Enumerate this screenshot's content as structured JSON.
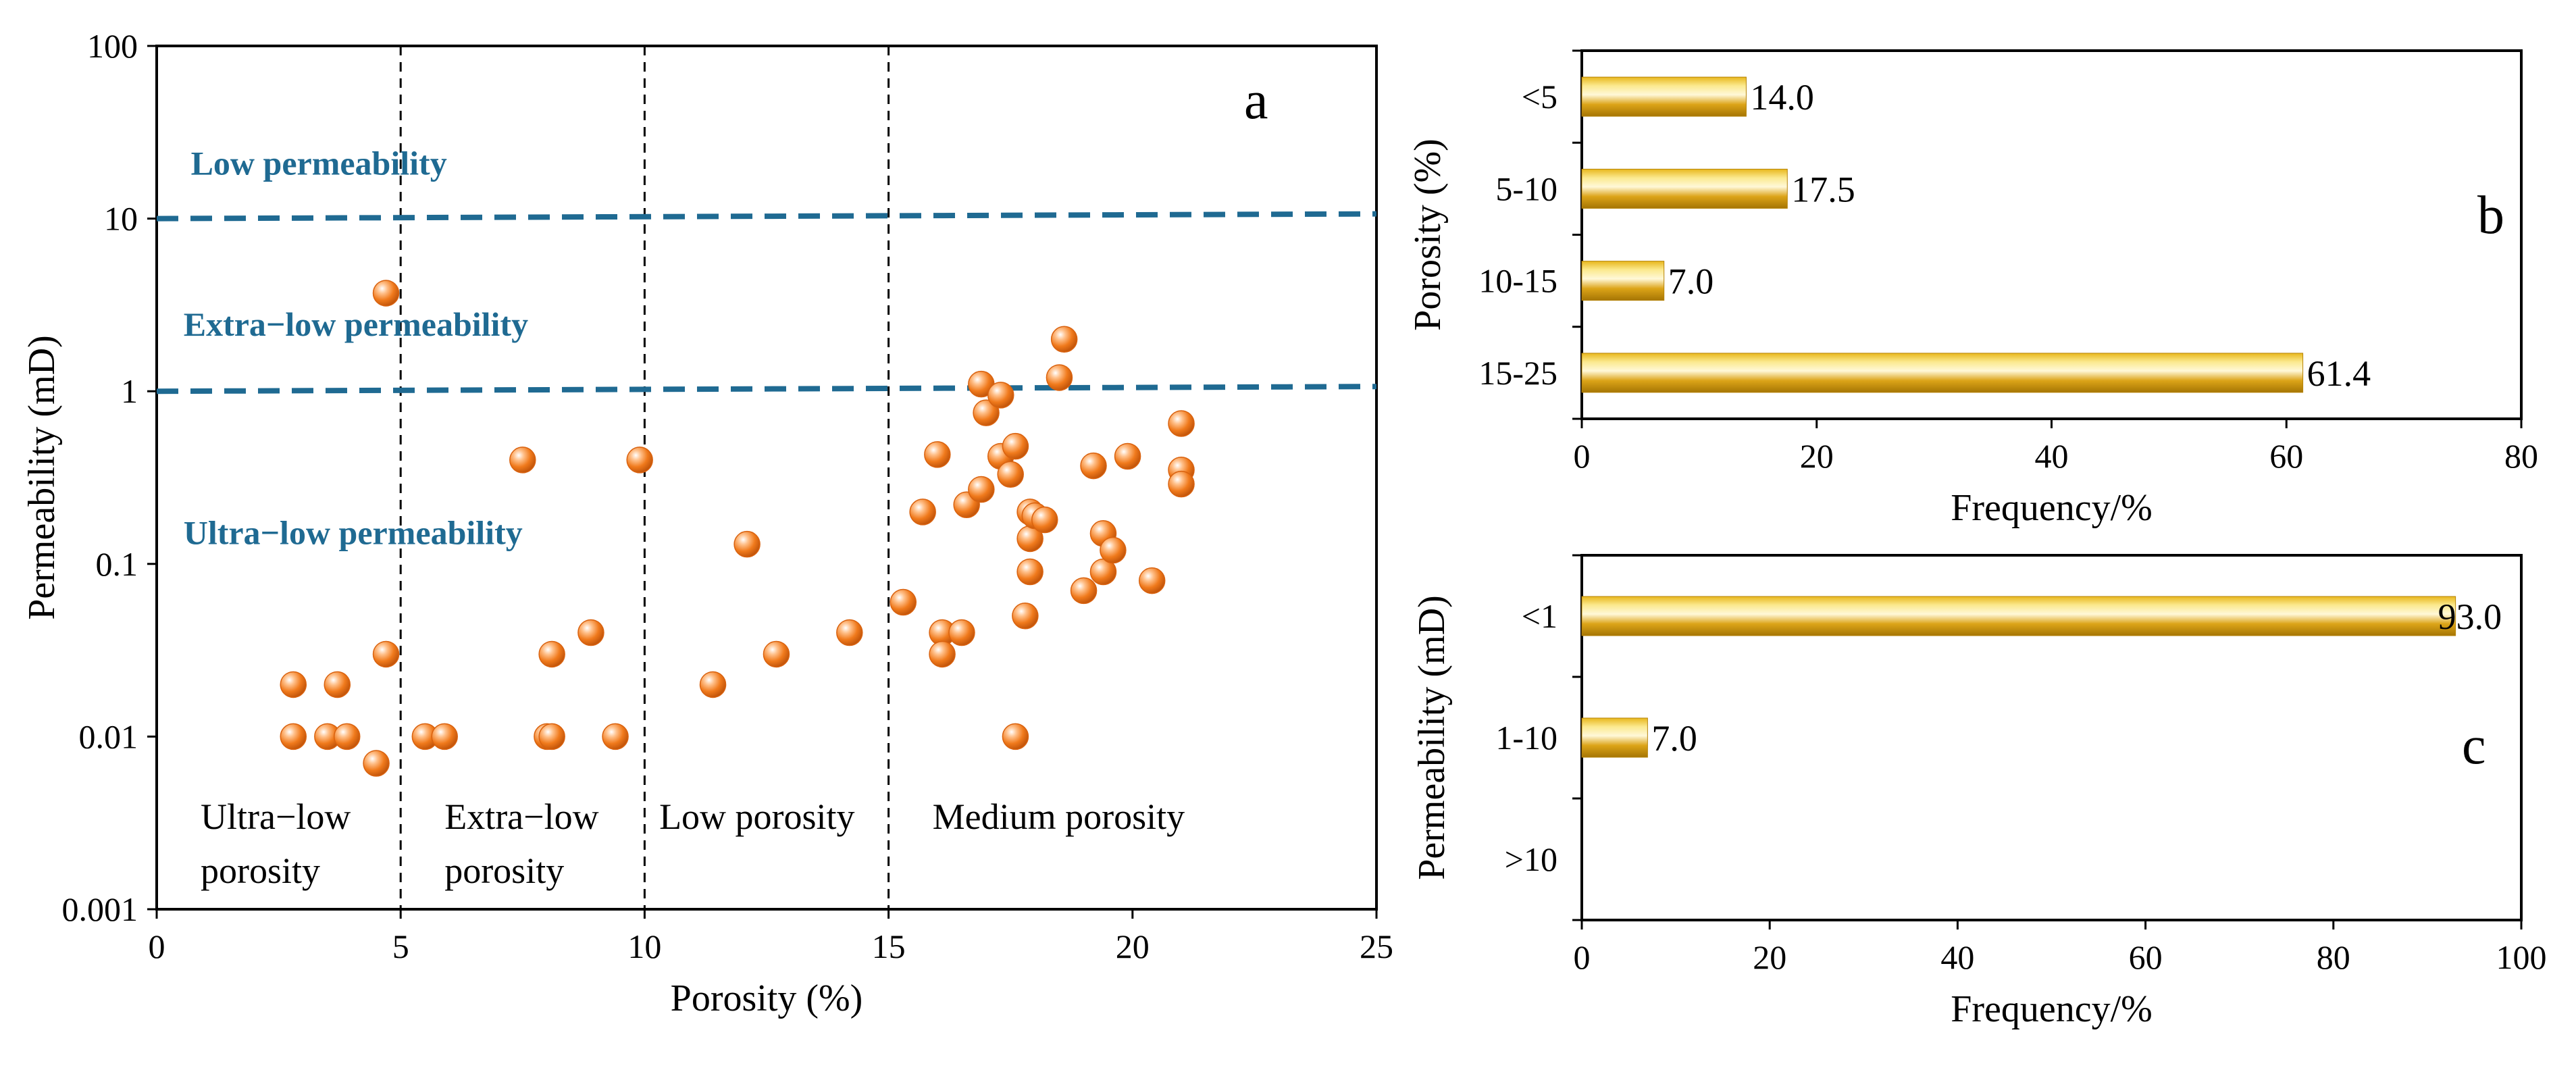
{
  "chart_data": [
    {
      "id": "a",
      "type": "scatter",
      "panel_label": "a",
      "xlabel": "Porosity (%)",
      "ylabel": "Permeability (mD)",
      "xlim": [
        0,
        25
      ],
      "ylim": [
        0.001,
        100
      ],
      "yscale": "log",
      "x_ticks": [
        0,
        5,
        10,
        15,
        20,
        25
      ],
      "x_tick_labels": [
        "0",
        "5",
        "10",
        "15",
        "20",
        "25"
      ],
      "y_ticks": [
        0.001,
        0.01,
        0.1,
        1,
        10,
        100
      ],
      "y_tick_labels": [
        "0.001",
        "0.01",
        "0.1",
        "1",
        "10",
        "100"
      ],
      "porosity_boundaries": [
        5,
        10,
        15
      ],
      "permeability_boundaries": [
        10,
        1
      ],
      "permeability_labels": [
        {
          "text": "Low permeability",
          "x": 0.7,
          "y": 18
        },
        {
          "text": "Extra−low permeability",
          "x": 0.55,
          "y": 2.1
        },
        {
          "text": "Ultra−low permeability",
          "x": 0.55,
          "y": 0.13
        }
      ],
      "porosity_labels": [
        {
          "lines": [
            "Ultra−low",
            "porosity"
          ],
          "x": 0.9,
          "y": 0.0035
        },
        {
          "lines": [
            "Extra−low",
            "porosity"
          ],
          "x": 5.9,
          "y": 0.0035
        },
        {
          "lines": [
            "Low porosity"
          ],
          "x": 10.3,
          "y": 0.0035
        },
        {
          "lines": [
            "Medium porosity"
          ],
          "x": 15.9,
          "y": 0.0035
        }
      ],
      "marker_color": "#f07a1c",
      "points": [
        {
          "x": 2.8,
          "y": 0.02
        },
        {
          "x": 2.8,
          "y": 0.01
        },
        {
          "x": 3.5,
          "y": 0.01
        },
        {
          "x": 3.7,
          "y": 0.02
        },
        {
          "x": 3.9,
          "y": 0.01
        },
        {
          "x": 4.5,
          "y": 0.007
        },
        {
          "x": 4.7,
          "y": 0.03
        },
        {
          "x": 4.7,
          "y": 3.7
        },
        {
          "x": 5.5,
          "y": 0.01
        },
        {
          "x": 5.9,
          "y": 0.01
        },
        {
          "x": 7.5,
          "y": 0.4
        },
        {
          "x": 8.0,
          "y": 0.01
        },
        {
          "x": 8.1,
          "y": 0.03
        },
        {
          "x": 8.1,
          "y": 0.01
        },
        {
          "x": 8.9,
          "y": 0.04
        },
        {
          "x": 9.4,
          "y": 0.01
        },
        {
          "x": 9.9,
          "y": 0.4
        },
        {
          "x": 11.4,
          "y": 0.02
        },
        {
          "x": 12.1,
          "y": 0.13
        },
        {
          "x": 12.7,
          "y": 0.03
        },
        {
          "x": 14.2,
          "y": 0.04
        },
        {
          "x": 15.3,
          "y": 0.06
        },
        {
          "x": 15.7,
          "y": 0.2
        },
        {
          "x": 16.0,
          "y": 0.43
        },
        {
          "x": 16.1,
          "y": 0.04
        },
        {
          "x": 16.1,
          "y": 0.03
        },
        {
          "x": 16.5,
          "y": 0.04
        },
        {
          "x": 16.6,
          "y": 0.22
        },
        {
          "x": 16.9,
          "y": 0.27
        },
        {
          "x": 16.9,
          "y": 1.1
        },
        {
          "x": 17.0,
          "y": 0.75
        },
        {
          "x": 17.3,
          "y": 0.42
        },
        {
          "x": 17.3,
          "y": 0.95
        },
        {
          "x": 17.5,
          "y": 0.33
        },
        {
          "x": 17.6,
          "y": 0.48
        },
        {
          "x": 17.6,
          "y": 0.01
        },
        {
          "x": 17.8,
          "y": 0.05
        },
        {
          "x": 17.9,
          "y": 0.09
        },
        {
          "x": 17.9,
          "y": 0.14
        },
        {
          "x": 17.9,
          "y": 0.2
        },
        {
          "x": 18.0,
          "y": 0.19
        },
        {
          "x": 18.2,
          "y": 0.18
        },
        {
          "x": 18.5,
          "y": 1.2
        },
        {
          "x": 18.6,
          "y": 2.0
        },
        {
          "x": 19.0,
          "y": 0.07
        },
        {
          "x": 19.2,
          "y": 0.37
        },
        {
          "x": 19.4,
          "y": 0.09
        },
        {
          "x": 19.4,
          "y": 0.15
        },
        {
          "x": 19.6,
          "y": 0.12
        },
        {
          "x": 19.9,
          "y": 0.42
        },
        {
          "x": 20.4,
          "y": 0.08
        },
        {
          "x": 21.0,
          "y": 0.65
        },
        {
          "x": 21.0,
          "y": 0.35
        },
        {
          "x": 21.0,
          "y": 0.29
        }
      ]
    },
    {
      "id": "b",
      "type": "bar",
      "orientation": "horizontal",
      "panel_label": "b",
      "categories": [
        "<5",
        "5-10",
        "10-15",
        "15-25"
      ],
      "values": [
        14.0,
        17.5,
        7.0,
        61.4
      ],
      "value_labels": [
        "14.0",
        "17.5",
        "7.0",
        "61.4"
      ],
      "xlabel": "Frequency/%",
      "ylabel": "Porosity (%)",
      "xlim": [
        0,
        80
      ],
      "x_ticks": [
        0,
        20,
        40,
        60,
        80
      ],
      "x_tick_labels": [
        "0",
        "20",
        "40",
        "60",
        "80"
      ],
      "bar_colors": [
        "#c48e05",
        "#fbe98e"
      ]
    },
    {
      "id": "c",
      "type": "bar",
      "orientation": "horizontal",
      "panel_label": "c",
      "categories": [
        "<1",
        "1-10",
        ">10"
      ],
      "values": [
        93.0,
        7.0,
        0
      ],
      "value_labels": [
        "93.0",
        "7.0",
        ""
      ],
      "xlabel": "Frequency/%",
      "ylabel": "Permeability (mD)",
      "xlim": [
        0,
        100
      ],
      "x_ticks": [
        0,
        20,
        40,
        60,
        80,
        100
      ],
      "x_tick_labels": [
        "0",
        "20",
        "40",
        "60",
        "80",
        "100"
      ],
      "bar_colors": [
        "#c48e05",
        "#fbe98e"
      ]
    }
  ]
}
